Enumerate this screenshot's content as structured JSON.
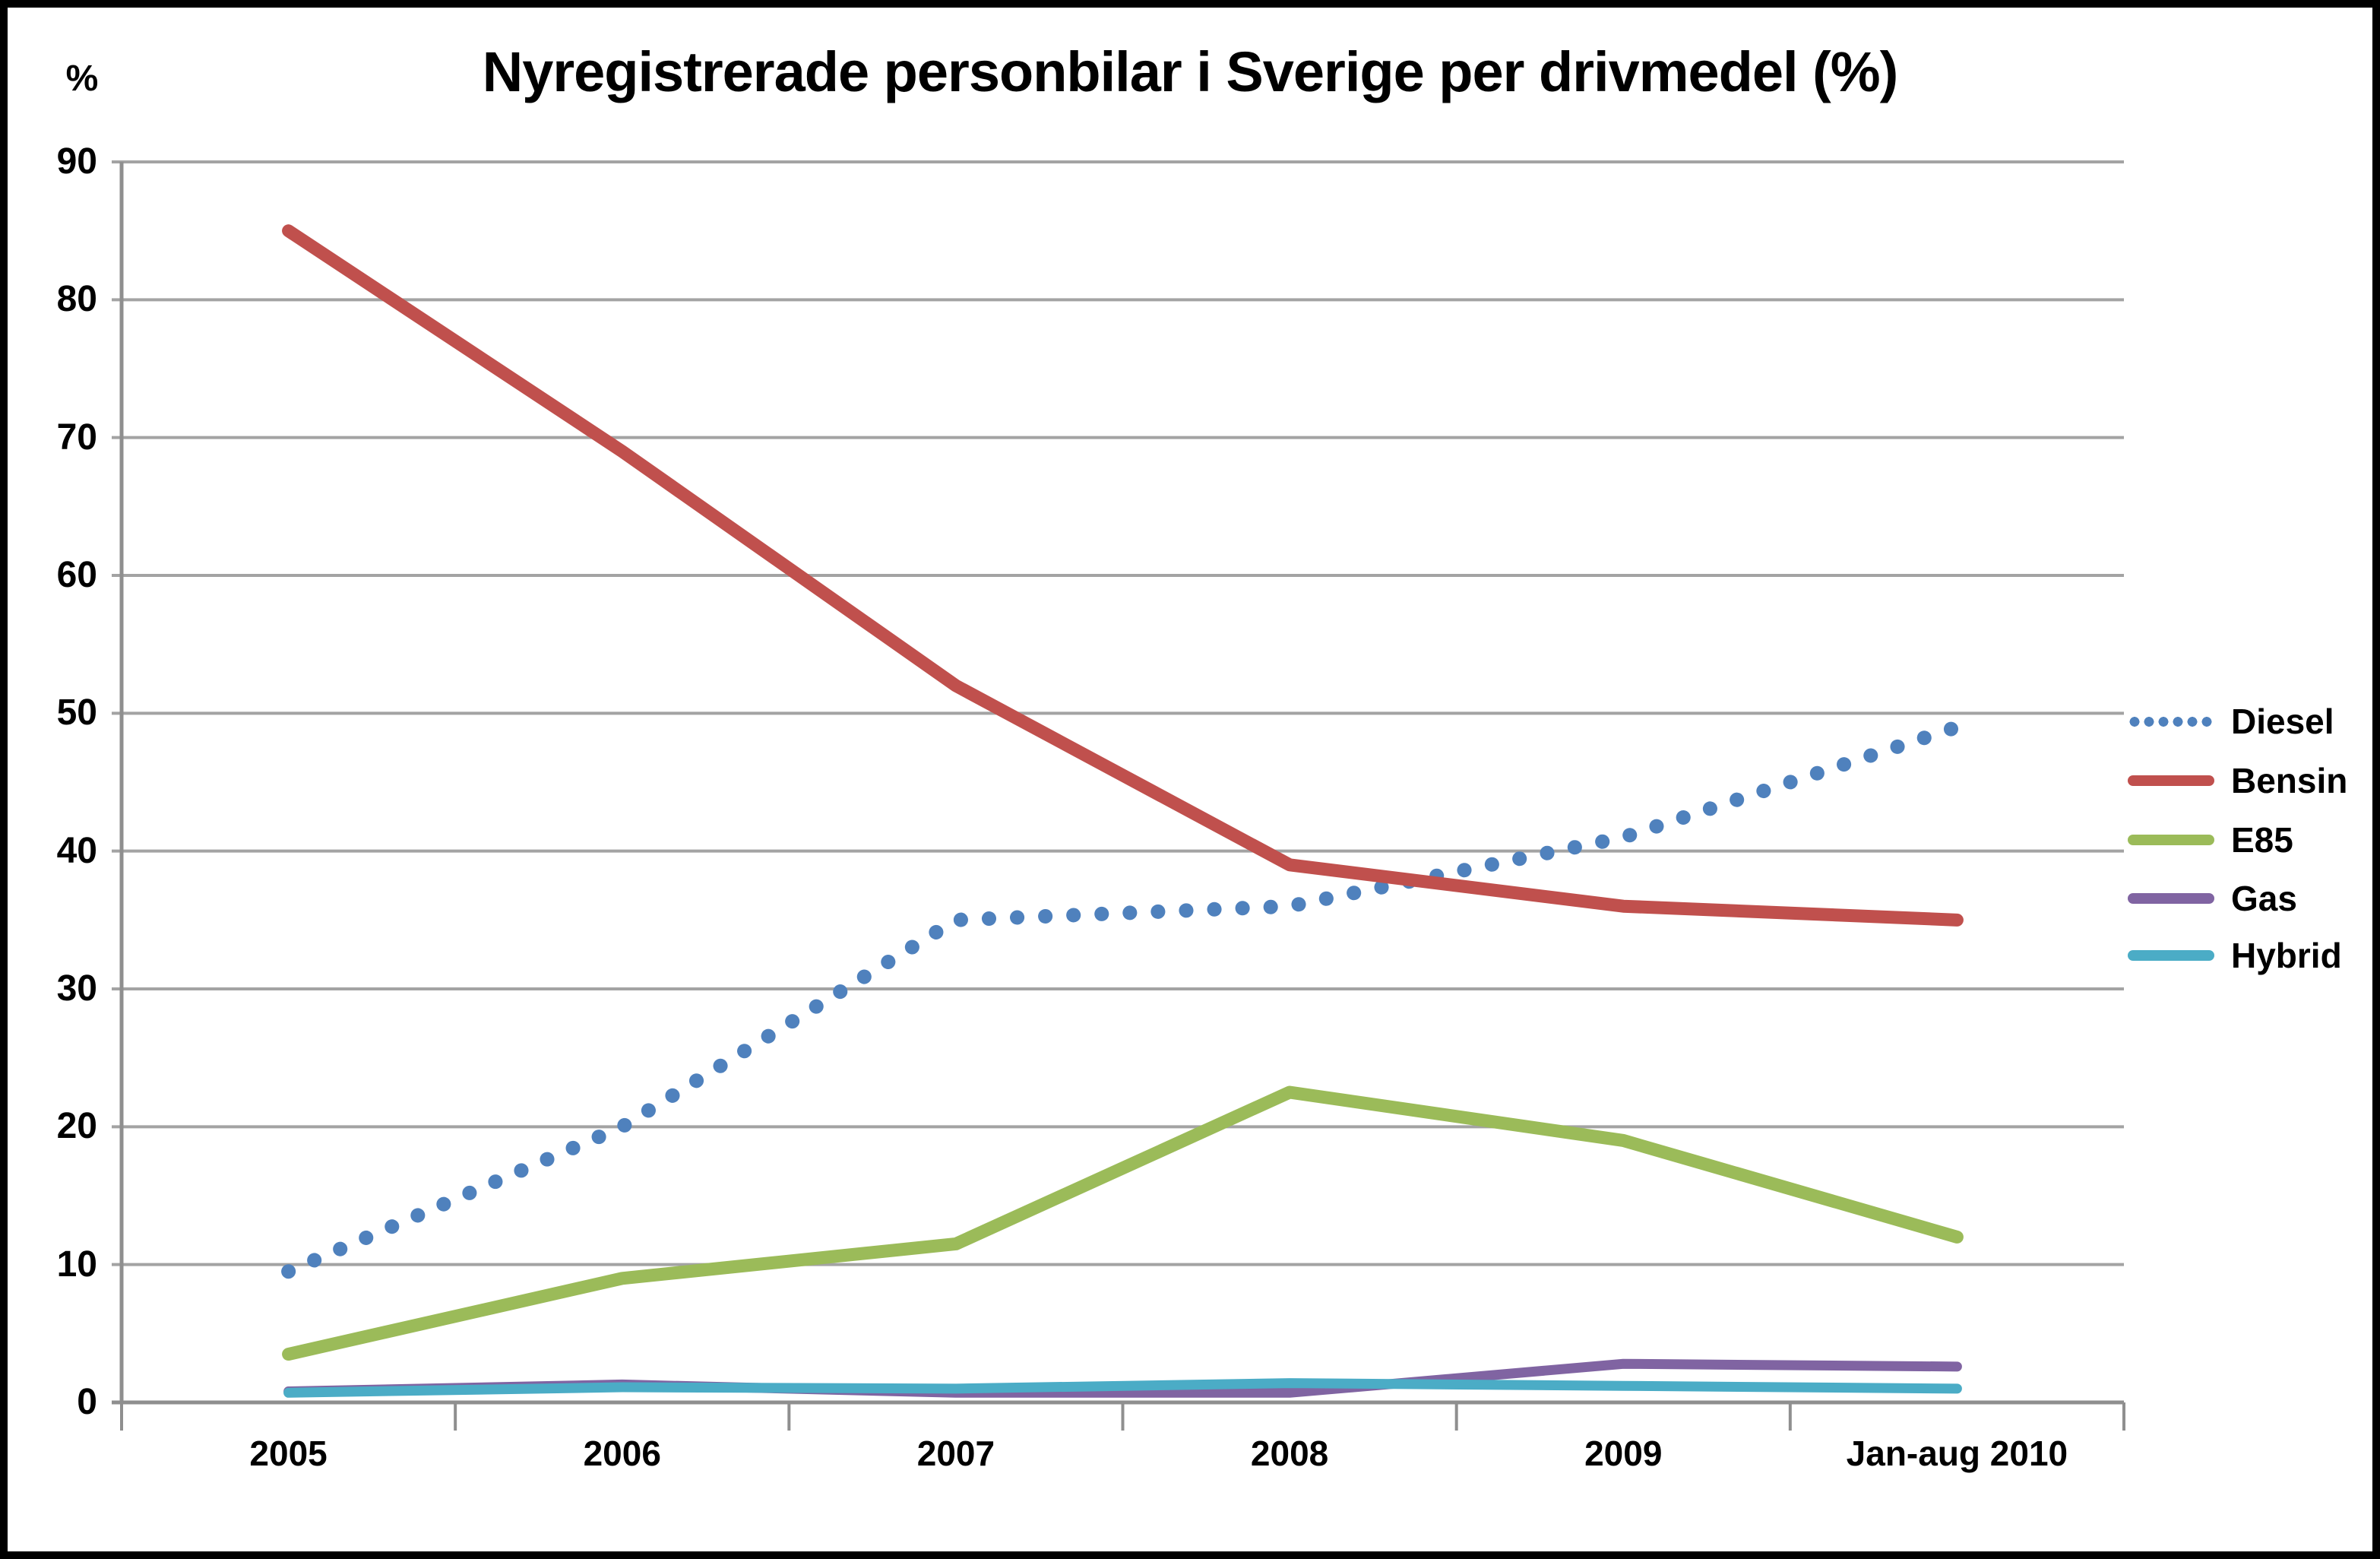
{
  "title": "Nyregistrerade personbilar i Sverige per drivmedel (%)",
  "chart_data": {
    "type": "line",
    "title": "Nyregistrerade personbilar i Sverige per drivmedel (%)",
    "ylabel": "%",
    "xlabel": "",
    "ylim": [
      0,
      90
    ],
    "grid": true,
    "legend_position": "right",
    "categories": [
      "2005",
      "2006",
      "2007",
      "2008",
      "2009",
      "Jan-aug 2010"
    ],
    "y_ticks": [
      "90",
      "80",
      "70",
      "60",
      "50",
      "40",
      "30",
      "20",
      "10",
      "0"
    ],
    "series": [
      {
        "name": "Diesel",
        "color": "#4F81BD",
        "style": "dotted",
        "line_width": 19,
        "values": [
          9.5,
          20,
          35,
          36,
          41,
          49
        ]
      },
      {
        "name": "Bensin",
        "color": "#C0504D",
        "style": "solid",
        "line_width": 17,
        "values": [
          85,
          69,
          52,
          39,
          36,
          35
        ]
      },
      {
        "name": "E85",
        "color": "#9BBB59",
        "style": "solid",
        "line_width": 17,
        "values": [
          3.5,
          9,
          11.5,
          22.5,
          19,
          12
        ]
      },
      {
        "name": "Gas",
        "color": "#8064A2",
        "style": "solid",
        "line_width": 13,
        "values": [
          0.8,
          1.3,
          0.7,
          0.7,
          2.8,
          2.6
        ]
      },
      {
        "name": "Hybrid",
        "color": "#4BACC6",
        "style": "solid",
        "line_width": 13,
        "values": [
          0.7,
          1.1,
          1.0,
          1.4,
          1.2,
          1.0
        ]
      }
    ],
    "colors": {
      "gridline": "#A3A3A3",
      "axis": "#8F8F8F",
      "text": "#000000"
    }
  }
}
